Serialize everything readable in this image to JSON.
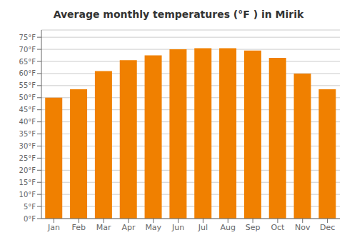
{
  "chart_data": {
    "type": "bar",
    "title": "Average monthly temperatures (°F ) in Mirik",
    "categories": [
      "Jan",
      "Feb",
      "Mar",
      "Apr",
      "May",
      "Jun",
      "Jul",
      "Aug",
      "Sep",
      "Oct",
      "Nov",
      "Dec"
    ],
    "values": [
      50,
      53.5,
      61,
      65.5,
      67.5,
      70,
      70.5,
      70.5,
      69.5,
      66.5,
      60,
      53.5
    ],
    "color": "#F08000",
    "ylim": [
      0,
      78
    ],
    "yticks": [
      {
        "value": 0,
        "label": "0°F"
      },
      {
        "value": 5,
        "label": "5°F"
      },
      {
        "value": 10,
        "label": "10°F"
      },
      {
        "value": 15,
        "label": "15°F"
      },
      {
        "value": 20,
        "label": "20°F"
      },
      {
        "value": 25,
        "label": "25°F"
      },
      {
        "value": 30,
        "label": "30°F"
      },
      {
        "value": 35,
        "label": "35°F"
      },
      {
        "value": 40,
        "label": "40°F"
      },
      {
        "value": 45,
        "label": "45°F"
      },
      {
        "value": 50,
        "label": "50°F"
      },
      {
        "value": 55,
        "label": "55°F"
      },
      {
        "value": 60,
        "label": "60°F"
      },
      {
        "value": 65,
        "label": "65°F"
      },
      {
        "value": 70,
        "label": "70°F"
      },
      {
        "value": 75,
        "label": "75°F"
      }
    ],
    "grid": true
  }
}
